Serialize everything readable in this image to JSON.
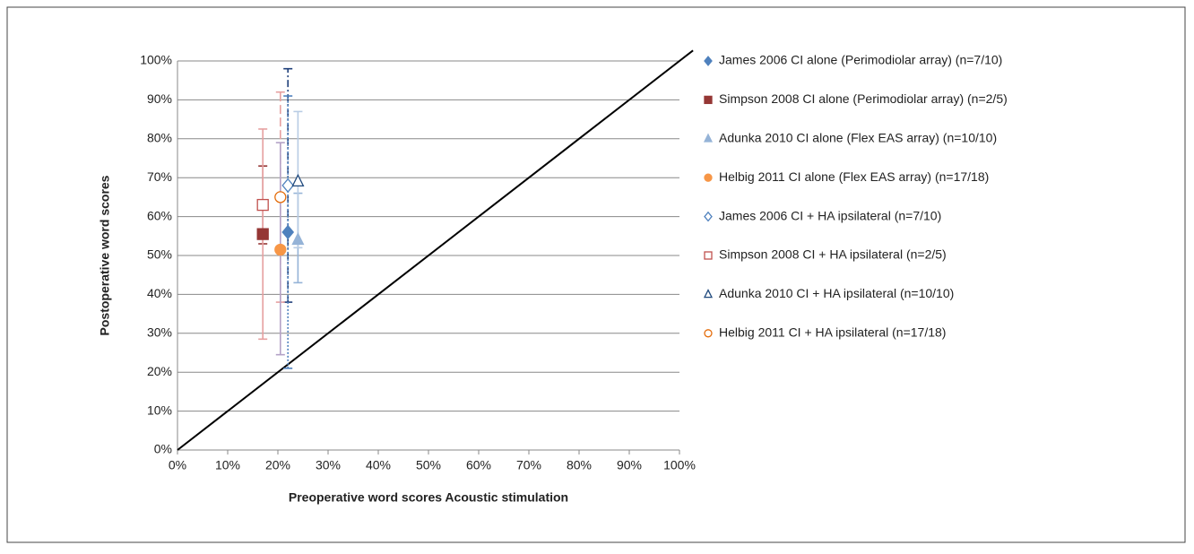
{
  "chart_data": {
    "type": "scatter",
    "x_label": "Preoperative word scores Acoustic stimulation",
    "y_label": "Postoperative word scores",
    "xlim": [
      0,
      100
    ],
    "ylim": [
      0,
      100
    ],
    "xticks": [
      {
        "value": 0,
        "label": "0%"
      },
      {
        "value": 10,
        "label": "10%"
      },
      {
        "value": 20,
        "label": "20%"
      },
      {
        "value": 30,
        "label": "30%"
      },
      {
        "value": 40,
        "label": "40%"
      },
      {
        "value": 50,
        "label": "50%"
      },
      {
        "value": 60,
        "label": "60%"
      },
      {
        "value": 70,
        "label": "70%"
      },
      {
        "value": 80,
        "label": "80%"
      },
      {
        "value": 90,
        "label": "90%"
      },
      {
        "value": 100,
        "label": "100%"
      }
    ],
    "yticks": [
      {
        "value": 0,
        "label": "0%"
      },
      {
        "value": 10,
        "label": "10%"
      },
      {
        "value": 20,
        "label": "20%"
      },
      {
        "value": 30,
        "label": "30%"
      },
      {
        "value": 40,
        "label": "40%"
      },
      {
        "value": 50,
        "label": "50%"
      },
      {
        "value": 60,
        "label": "60%"
      },
      {
        "value": 70,
        "label": "70%"
      },
      {
        "value": 80,
        "label": "80%"
      },
      {
        "value": 90,
        "label": "90%"
      },
      {
        "value": 100,
        "label": "100%"
      }
    ],
    "grid": true,
    "diagonal": true,
    "legend": "right",
    "series": [
      {
        "name": "James 2006 CI alone (Perimodiolar array) (n=7/10)",
        "color": "#4f81bd",
        "marker": "diamond",
        "filled": true,
        "error_color": "#1f3f7a",
        "error_dash": "8 3 2 3",
        "x": [
          22
        ],
        "values": [
          56
        ],
        "error_low": [
          38
        ],
        "error_high": [
          98
        ]
      },
      {
        "name": "Simpson 2008 CI alone (Perimodiolar array) (n=2/5)",
        "color": "#953735",
        "marker": "square",
        "filled": true,
        "error_color": "#953735",
        "error_dash": "",
        "x": [
          17
        ],
        "values": [
          55.5
        ],
        "error_low": [
          53
        ],
        "error_high": [
          73
        ]
      },
      {
        "name": "Adunka 2010 CI alone (Flex EAS array) (n=10/10)",
        "color": "#95b3d7",
        "marker": "triangle",
        "filled": true,
        "error_color": "#95b3d7",
        "error_dash": "",
        "x": [
          24
        ],
        "values": [
          54
        ],
        "error_low": [
          43
        ],
        "error_high": [
          66
        ]
      },
      {
        "name": "Helbig 2011 CI alone (Flex EAS array) (n=17/18)",
        "color": "#f79646",
        "marker": "circle",
        "filled": true,
        "error_color": "#e6a0a0",
        "error_dash": "10 4",
        "x": [
          20.5
        ],
        "values": [
          51.5
        ],
        "error_low": [
          38
        ],
        "error_high": [
          92
        ]
      },
      {
        "name": "James 2006 CI + HA ipsilateral (n=7/10)",
        "color": "#4f81bd",
        "marker": "diamond",
        "filled": false,
        "error_color": "#4f81bd",
        "error_dash": "2 2",
        "x": [
          22
        ],
        "values": [
          68
        ],
        "error_low": [
          21
        ],
        "error_high": [
          91
        ]
      },
      {
        "name": "Simpson 2008 CI + HA ipsilateral (n=2/5)",
        "color": "#c0504d",
        "marker": "square",
        "filled": false,
        "error_color": "#e6a0a0",
        "error_dash": "",
        "x": [
          17
        ],
        "values": [
          63
        ],
        "error_low": [
          28.5
        ],
        "error_high": [
          82.5
        ]
      },
      {
        "name": "Adunka 2010 CI + HA ipsilateral (n=10/10)",
        "color": "#1f497d",
        "marker": "triangle",
        "filled": false,
        "error_color": "#b8cce4",
        "error_dash": "",
        "x": [
          24
        ],
        "values": [
          69
        ],
        "error_low": [
          52
        ],
        "error_high": [
          87
        ]
      },
      {
        "name": "Helbig 2011 CI + HA ipsilateral (n=17/18)",
        "color": "#e46c0a",
        "marker": "circle",
        "filled": false,
        "error_color": "#b3a2c7",
        "error_dash": "",
        "x": [
          20.5
        ],
        "values": [
          65
        ],
        "error_low": [
          24.5
        ],
        "error_high": [
          79
        ]
      }
    ]
  }
}
